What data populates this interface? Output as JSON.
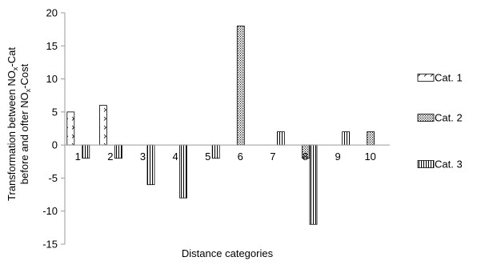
{
  "chart_data": {
    "type": "bar",
    "categories": [
      "1",
      "2",
      "3",
      "4",
      "5",
      "6",
      "7",
      "8",
      "9",
      "10"
    ],
    "series": [
      {
        "name": "Cat. 1",
        "values": [
          5,
          6,
          0,
          0,
          0,
          0,
          0,
          0,
          0,
          0
        ],
        "pattern": "chevron"
      },
      {
        "name": "Cat. 2",
        "values": [
          0,
          0,
          0,
          0,
          0,
          18,
          0,
          -2,
          0,
          2
        ],
        "pattern": "dots"
      },
      {
        "name": "Cat. 3",
        "values": [
          -2,
          -2,
          -6,
          -8,
          -2,
          0,
          2,
          -12,
          2,
          0
        ],
        "pattern": "vertical-lines"
      }
    ],
    "ylim": [
      -15,
      20
    ],
    "yticks": [
      -15,
      -10,
      -5,
      0,
      5,
      10,
      15,
      20
    ],
    "xlabel": "Distance categories",
    "ylabel": {
      "line1_prefix": "Transformation between NO",
      "line1_sub": "x",
      "line1_suffix": "-Cat",
      "line2_prefix": "before and ofter NO",
      "line2_sub": "x",
      "line2_suffix": "-Cost"
    },
    "grid": false,
    "legend_position": "right"
  }
}
